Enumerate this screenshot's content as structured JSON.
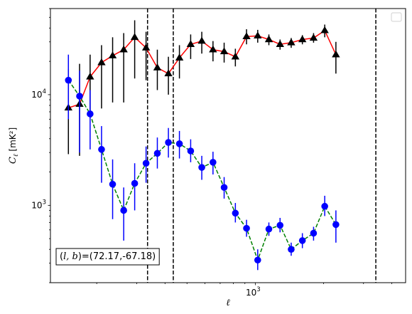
{
  "chart_data": {
    "type": "scatter",
    "title": "",
    "xlabel": "ℓ",
    "ylabel": "C_ℓ [mK²]",
    "xscale": "log",
    "yscale": "log",
    "xlim": [
      125,
      4600
    ],
    "ylim": [
      200,
      60000
    ],
    "grid": false,
    "legend": "top-right, empty box",
    "annotation": "(l, b)=(72.17,-67.18)",
    "x_tick_labels": [
      {
        "value": 1000,
        "label": "10^3"
      }
    ],
    "y_tick_labels": [
      {
        "value": 1000,
        "label": "10^3"
      },
      {
        "value": 10000,
        "label": "10^4"
      }
    ],
    "vlines": [
      335,
      435,
      3400
    ],
    "series": [
      {
        "color": "#000000",
        "line_color": "#ff0000",
        "marker": "triangle",
        "linestyle": "solid",
        "points": [
          {
            "x": 150,
            "y": 7600,
            "lo": 2900,
            "hi": 17000
          },
          {
            "x": 168,
            "y": 8200,
            "lo": 2800,
            "hi": 19000
          },
          {
            "x": 187,
            "y": 14500,
            "lo": 6500,
            "hi": 23000
          },
          {
            "x": 210,
            "y": 19500,
            "lo": 7500,
            "hi": 28000
          },
          {
            "x": 235,
            "y": 22500,
            "lo": 8500,
            "hi": 33000
          },
          {
            "x": 263,
            "y": 25500,
            "lo": 8500,
            "hi": 36000
          },
          {
            "x": 294,
            "y": 33000,
            "lo": 14000,
            "hi": 47000
          },
          {
            "x": 330,
            "y": 26500,
            "lo": 13500,
            "hi": 37000
          },
          {
            "x": 370,
            "y": 17500,
            "lo": 11000,
            "hi": 25500
          },
          {
            "x": 414,
            "y": 15500,
            "lo": 10000,
            "hi": 22000
          },
          {
            "x": 463,
            "y": 21500,
            "lo": 14000,
            "hi": 28000
          },
          {
            "x": 519,
            "y": 28500,
            "lo": 21000,
            "hi": 35000
          },
          {
            "x": 581,
            "y": 30500,
            "lo": 23500,
            "hi": 37000
          },
          {
            "x": 651,
            "y": 25500,
            "lo": 20000,
            "hi": 30500
          },
          {
            "x": 729,
            "y": 24500,
            "lo": 19500,
            "hi": 29500
          },
          {
            "x": 817,
            "y": 22000,
            "lo": 18000,
            "hi": 26000
          },
          {
            "x": 915,
            "y": 33500,
            "lo": 28500,
            "hi": 39000
          },
          {
            "x": 1025,
            "y": 34000,
            "lo": 29500,
            "hi": 38500
          },
          {
            "x": 1148,
            "y": 31500,
            "lo": 28000,
            "hi": 35000
          },
          {
            "x": 1286,
            "y": 28500,
            "lo": 25500,
            "hi": 31500
          },
          {
            "x": 1440,
            "y": 29500,
            "lo": 26500,
            "hi": 32500
          },
          {
            "x": 1613,
            "y": 31500,
            "lo": 28500,
            "hi": 34500
          },
          {
            "x": 1807,
            "y": 32500,
            "lo": 29500,
            "hi": 36000
          },
          {
            "x": 2024,
            "y": 38000,
            "lo": 33000,
            "hi": 43000
          },
          {
            "x": 2267,
            "y": 23000,
            "lo": 15500,
            "hi": 30000
          }
        ]
      },
      {
        "color": "#0000ff",
        "line_color": "#008000",
        "marker": "circle",
        "linestyle": "dashed",
        "points": [
          {
            "x": 150,
            "y": 13500,
            "lo": 6000,
            "hi": 23000
          },
          {
            "x": 168,
            "y": 9700,
            "lo": 3000,
            "hi": 16500
          },
          {
            "x": 187,
            "y": 6700,
            "lo": 3200,
            "hi": 11000
          },
          {
            "x": 210,
            "y": 3200,
            "lo": 1600,
            "hi": 5200
          },
          {
            "x": 235,
            "y": 1550,
            "lo": 750,
            "hi": 2600
          },
          {
            "x": 263,
            "y": 900,
            "lo": 480,
            "hi": 1450
          },
          {
            "x": 294,
            "y": 1580,
            "lo": 900,
            "hi": 2400
          },
          {
            "x": 330,
            "y": 2400,
            "lo": 1600,
            "hi": 3400
          },
          {
            "x": 370,
            "y": 2950,
            "lo": 2150,
            "hi": 4100
          },
          {
            "x": 414,
            "y": 3700,
            "lo": 2700,
            "hi": 5000
          },
          {
            "x": 463,
            "y": 3600,
            "lo": 2650,
            "hi": 4700
          },
          {
            "x": 519,
            "y": 3100,
            "lo": 2450,
            "hi": 3950
          },
          {
            "x": 581,
            "y": 2200,
            "lo": 1700,
            "hi": 2800
          },
          {
            "x": 651,
            "y": 2450,
            "lo": 1900,
            "hi": 3050
          },
          {
            "x": 729,
            "y": 1450,
            "lo": 1150,
            "hi": 1800
          },
          {
            "x": 817,
            "y": 850,
            "lo": 700,
            "hi": 1050
          },
          {
            "x": 915,
            "y": 620,
            "lo": 520,
            "hi": 740
          },
          {
            "x": 1025,
            "y": 320,
            "lo": 260,
            "hi": 400
          },
          {
            "x": 1148,
            "y": 610,
            "lo": 530,
            "hi": 700
          },
          {
            "x": 1286,
            "y": 660,
            "lo": 570,
            "hi": 770
          },
          {
            "x": 1440,
            "y": 400,
            "lo": 350,
            "hi": 460
          },
          {
            "x": 1613,
            "y": 480,
            "lo": 410,
            "hi": 560
          },
          {
            "x": 1807,
            "y": 560,
            "lo": 480,
            "hi": 640
          },
          {
            "x": 2024,
            "y": 980,
            "lo": 800,
            "hi": 1220
          },
          {
            "x": 2267,
            "y": 670,
            "lo": 460,
            "hi": 900
          }
        ]
      }
    ]
  }
}
